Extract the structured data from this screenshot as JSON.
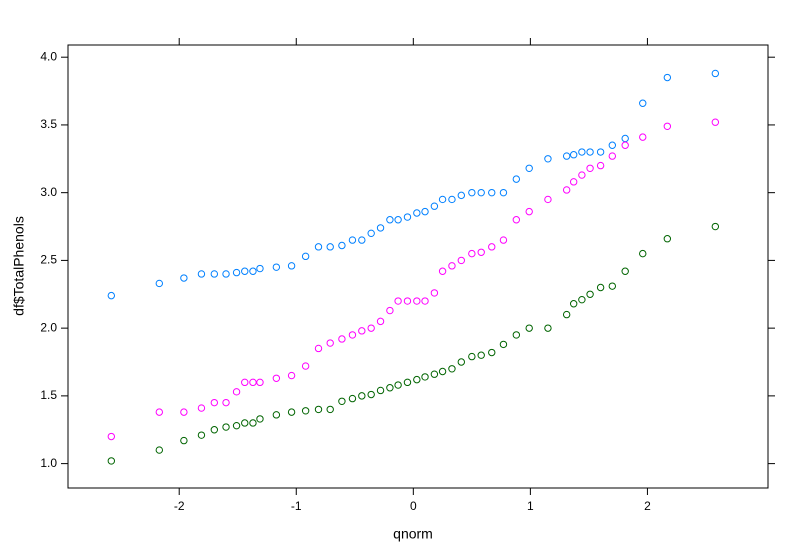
{
  "chart_data": {
    "type": "scatter",
    "xlabel": "qnorm",
    "ylabel": "df$TotalPhenols",
    "xlim": [
      -2.95,
      3.03
    ],
    "ylim": [
      0.82,
      4.09
    ],
    "xticks": [
      -2,
      -1,
      0,
      1,
      2
    ],
    "yticks": [
      {
        "value": 1,
        "label": "1.0"
      },
      {
        "value": 1.5,
        "label": "1.5"
      },
      {
        "value": 2,
        "label": "2.0"
      },
      {
        "value": 2.5,
        "label": "2.5"
      },
      {
        "value": 3,
        "label": "3.0"
      },
      {
        "value": 3.5,
        "label": "3.5"
      },
      {
        "value": 4,
        "label": "4.0"
      }
    ],
    "x": [
      -2.58,
      -2.17,
      -1.96,
      -1.81,
      -1.7,
      -1.6,
      -1.51,
      -1.44,
      -1.37,
      -1.31,
      -1.17,
      -1.04,
      -0.92,
      -0.81,
      -0.71,
      -0.61,
      -0.52,
      -0.44,
      -0.36,
      -0.28,
      -0.2,
      -0.13,
      -0.05,
      0.03,
      0.1,
      0.18,
      0.25,
      0.33,
      0.41,
      0.5,
      0.58,
      0.67,
      0.77,
      0.88,
      0.99,
      1.15,
      1.31,
      1.37,
      1.44,
      1.51,
      1.6,
      1.7,
      1.81,
      1.96,
      2.17,
      2.58
    ],
    "series": [
      {
        "color": "#0080ff",
        "values": [
          2.24,
          2.33,
          2.37,
          2.4,
          2.4,
          2.4,
          2.41,
          2.42,
          2.42,
          2.44,
          2.45,
          2.46,
          2.53,
          2.6,
          2.6,
          2.61,
          2.65,
          2.65,
          2.7,
          2.74,
          2.8,
          2.8,
          2.82,
          2.85,
          2.86,
          2.9,
          2.95,
          2.95,
          2.98,
          3.0,
          3.0,
          3.0,
          3.0,
          3.1,
          3.18,
          3.25,
          3.27,
          3.28,
          3.3,
          3.3,
          3.3,
          3.35,
          3.4,
          3.66,
          3.85,
          3.88
        ]
      },
      {
        "color": "#ff00ff",
        "values": [
          1.2,
          1.38,
          1.38,
          1.41,
          1.45,
          1.45,
          1.53,
          1.6,
          1.6,
          1.6,
          1.63,
          1.65,
          1.72,
          1.85,
          1.89,
          1.92,
          1.95,
          1.98,
          2.0,
          2.05,
          2.13,
          2.2,
          2.2,
          2.2,
          2.2,
          2.26,
          2.42,
          2.46,
          2.5,
          2.55,
          2.56,
          2.6,
          2.65,
          2.8,
          2.86,
          2.95,
          3.02,
          3.08,
          3.13,
          3.18,
          3.2,
          3.27,
          3.35,
          3.41,
          3.49,
          3.52
        ]
      },
      {
        "color": "#006400",
        "values": [
          1.02,
          1.1,
          1.17,
          1.21,
          1.25,
          1.27,
          1.28,
          1.3,
          1.3,
          1.33,
          1.36,
          1.38,
          1.39,
          1.4,
          1.4,
          1.46,
          1.48,
          1.5,
          1.51,
          1.54,
          1.56,
          1.58,
          1.6,
          1.62,
          1.64,
          1.66,
          1.68,
          1.7,
          1.75,
          1.79,
          1.8,
          1.82,
          1.88,
          1.95,
          2.0,
          2.0,
          2.1,
          2.18,
          2.21,
          2.25,
          2.3,
          2.31,
          2.42,
          2.55,
          2.66,
          2.75
        ]
      }
    ]
  }
}
